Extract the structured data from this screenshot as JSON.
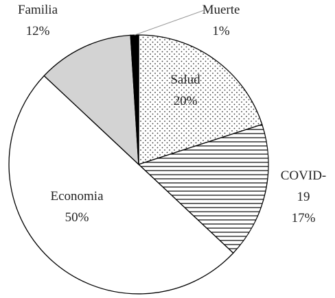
{
  "chart_data": {
    "type": "pie",
    "categories": [
      "Salud",
      "COVID-19",
      "Economia",
      "Familia",
      "Muerte"
    ],
    "values": [
      20,
      17,
      50,
      12,
      1
    ],
    "value_labels": [
      "20%",
      "17%",
      "50%",
      "12%",
      "1%"
    ],
    "colors": [
      "#ffffff",
      "#ffffff",
      "#ffffff",
      "#d3d3d3",
      "#000000"
    ],
    "patterns": [
      "dots",
      "hlines",
      "none",
      "none",
      "none"
    ]
  }
}
